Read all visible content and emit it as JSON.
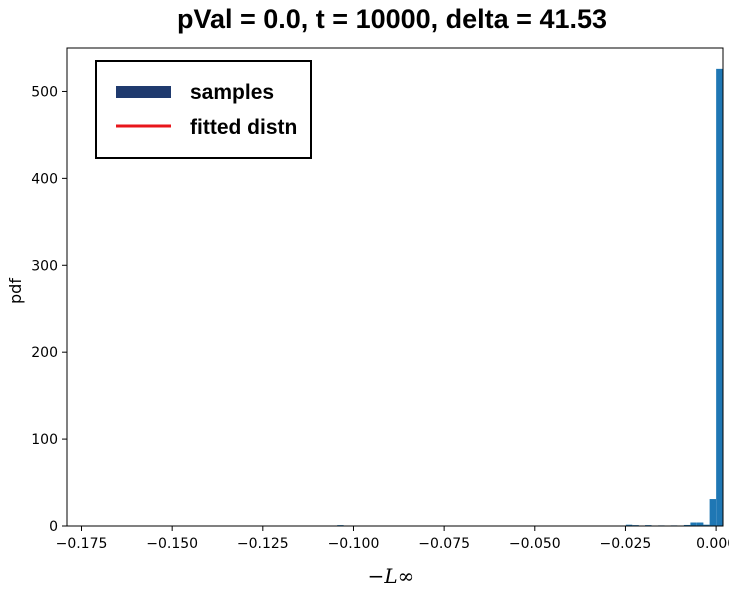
{
  "chart_data": {
    "type": "bar",
    "title": "pVal = 0.0, t = 10000, delta = 41.53",
    "xlabel": "−L∞",
    "ylabel": "pdf",
    "xlim": [
      -0.179,
      0.0019
    ],
    "ylim": [
      0,
      550
    ],
    "xticks": [
      -0.175,
      -0.15,
      -0.125,
      -0.1,
      -0.075,
      -0.05,
      -0.025,
      0.0
    ],
    "xtick_labels": [
      "−0.175",
      "−0.150",
      "−0.125",
      "−0.100",
      "−0.075",
      "−0.050",
      "−0.025",
      "0.000"
    ],
    "yticks": [
      0,
      100,
      200,
      300,
      400,
      500
    ],
    "ytick_labels": [
      "0",
      "100",
      "200",
      "300",
      "400",
      "500"
    ],
    "grid": false,
    "legend": {
      "placement": "top-left",
      "entries": [
        {
          "label": "samples",
          "color": "#1f3a6e",
          "style": "bar"
        },
        {
          "label": "fitted distn",
          "color": "#e8161b",
          "style": "line"
        }
      ]
    },
    "bar_color": "#1f77b4",
    "bin_width": 0.00178,
    "series": [
      {
        "name": "samples",
        "bins": [
          {
            "x": -0.1036,
            "value": 1.0
          },
          {
            "x": -0.024,
            "value": 1.5
          },
          {
            "x": -0.0222,
            "value": 1.0
          },
          {
            "x": -0.0187,
            "value": 1.0
          },
          {
            "x": -0.0151,
            "value": 0.7
          },
          {
            "x": -0.0116,
            "value": 0.7
          },
          {
            "x": -0.008,
            "value": 1.2
          },
          {
            "x": -0.0062,
            "value": 4.0
          },
          {
            "x": -0.0044,
            "value": 4.0
          },
          {
            "x": -0.0027,
            "value": 1.5
          },
          {
            "x": -0.0009,
            "value": 31.0
          },
          {
            "x": 0.0009,
            "value": 526.0
          }
        ]
      }
    ]
  }
}
